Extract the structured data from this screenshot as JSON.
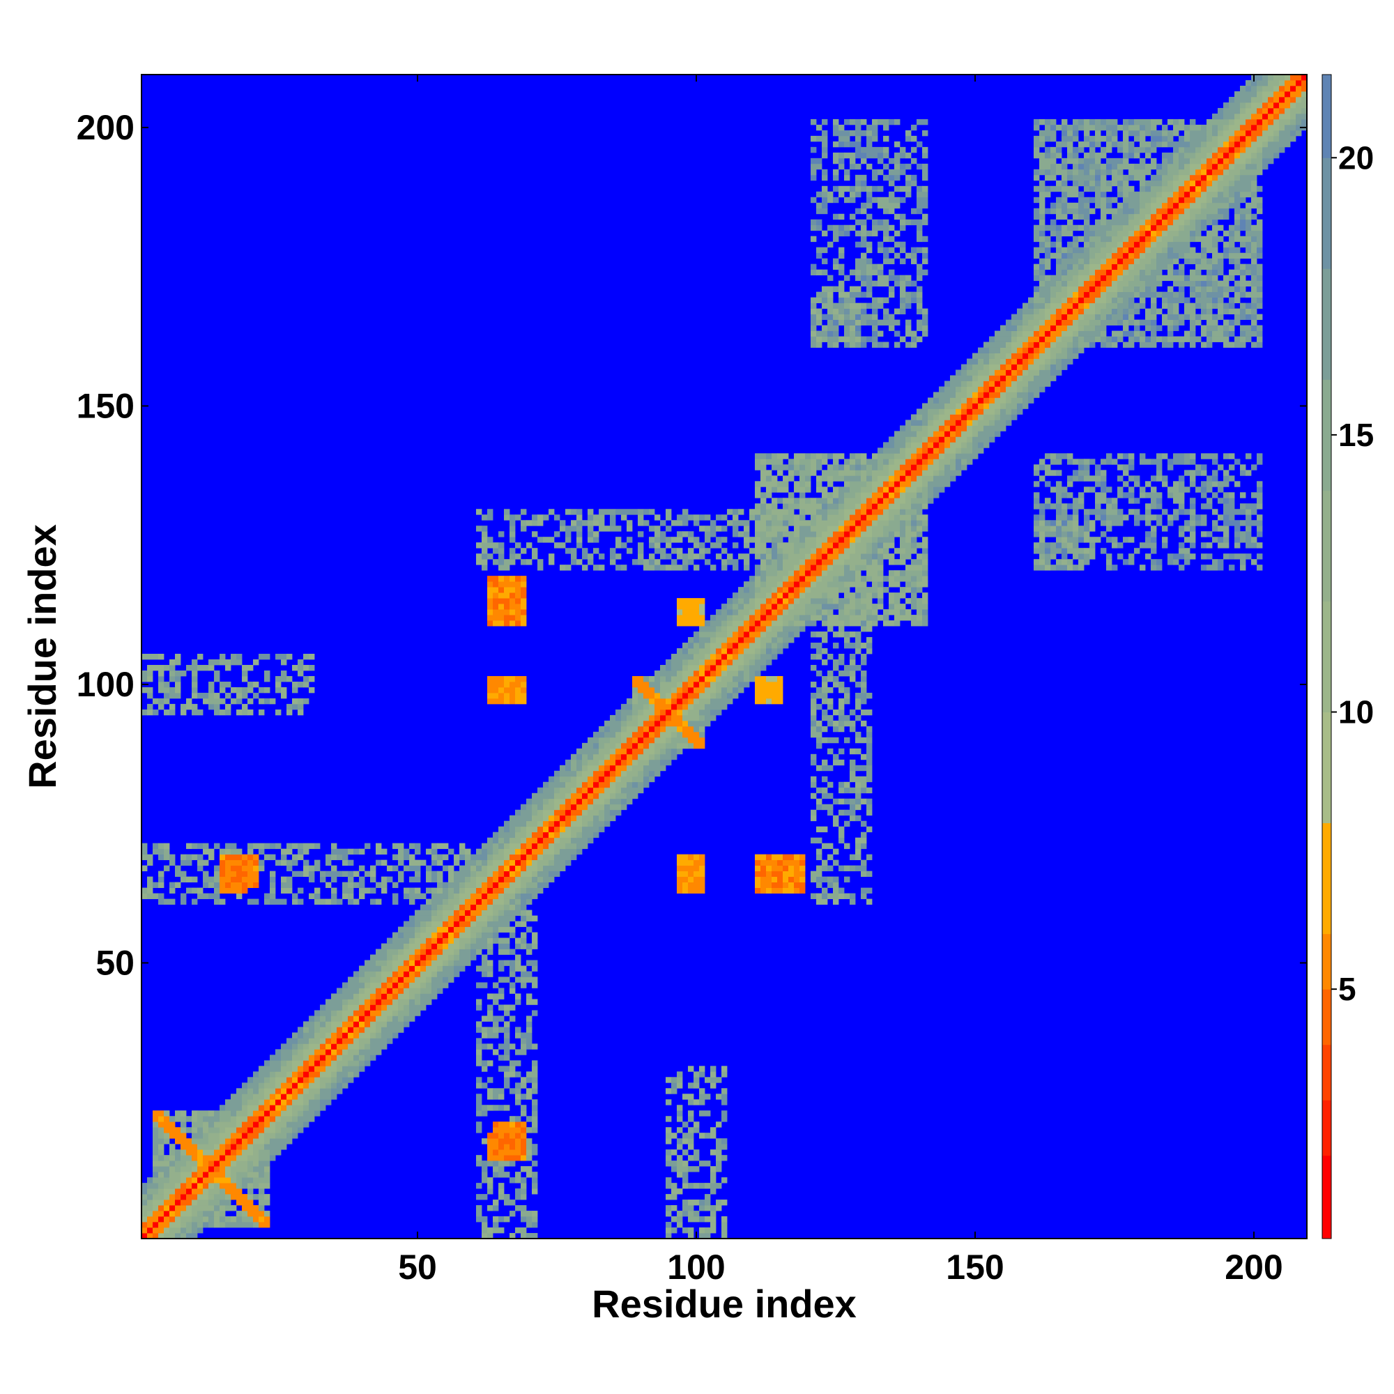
{
  "chart_data": {
    "type": "heatmap",
    "title": "",
    "xlabel": "Residue index",
    "ylabel": "Residue index",
    "n_residues": 209,
    "xlim": [
      1,
      209
    ],
    "ylim": [
      1,
      209
    ],
    "x_ticks": [
      "50",
      "100",
      "150",
      "200"
    ],
    "y_ticks": [
      "200",
      "150",
      "100",
      "50"
    ],
    "colorbar": {
      "ticks": [
        "20",
        "15",
        "10",
        "5"
      ],
      "range": [
        0.5,
        21.5
      ],
      "colors": [
        "#ff0000",
        "#ff2200",
        "#ff4400",
        "#ff6600",
        "#ff8800",
        "#ffaa00",
        "#a8bc88",
        "#9cb68a",
        "#94b08c",
        "#8aaa90",
        "#7c9e98",
        "#6e92a4",
        "#5f84b4",
        "#0000ff"
      ],
      "color_bounds": [
        0.5,
        2,
        3,
        4,
        5,
        6,
        8,
        10,
        12,
        14,
        16,
        18,
        20,
        21.5
      ]
    },
    "matrix_description": "Symmetric residue-residue distance map (Angstrom)",
    "diagonal_distance": 1,
    "contact_blocks": [
      {
        "i": [
          2,
          22
        ],
        "j": [
          2,
          22
        ],
        "d": 9,
        "antidiagonal": true
      },
      {
        "i": [
          88,
          100
        ],
        "j": [
          88,
          100
        ],
        "d": 9,
        "antidiagonal": true
      },
      {
        "i": [
          62,
          68
        ],
        "j": [
          110,
          118
        ],
        "d": 4
      },
      {
        "i": [
          16,
          20
        ],
        "j": [
          63,
          68
        ],
        "d": 4
      },
      {
        "i": [
          62,
          68
        ],
        "j": [
          14,
          18
        ],
        "d": 4
      },
      {
        "i": [
          96,
          100
        ],
        "j": [
          62,
          66
        ],
        "d": 5
      },
      {
        "i": [
          62,
          68
        ],
        "j": [
          96,
          100
        ],
        "d": 5
      },
      {
        "i": [
          96,
          100
        ],
        "j": [
          110,
          114
        ],
        "d": 6
      },
      {
        "i": [
          120,
          128
        ],
        "j": [
          160,
          170
        ],
        "d": 12
      },
      {
        "i": [
          160,
          200
        ],
        "j": [
          160,
          200
        ],
        "d": 14
      },
      {
        "i": [
          110,
          140
        ],
        "j": [
          110,
          140
        ],
        "d": 12
      },
      {
        "i": [
          0,
          30
        ],
        "j": [
          94,
          104
        ],
        "d": 12
      },
      {
        "i": [
          60,
          70
        ],
        "j": [
          0,
          60
        ],
        "d": 13
      },
      {
        "i": [
          120,
          130
        ],
        "j": [
          60,
          130
        ],
        "d": 13
      },
      {
        "i": [
          160,
          200
        ],
        "j": [
          120,
          140
        ],
        "d": 14
      }
    ]
  }
}
